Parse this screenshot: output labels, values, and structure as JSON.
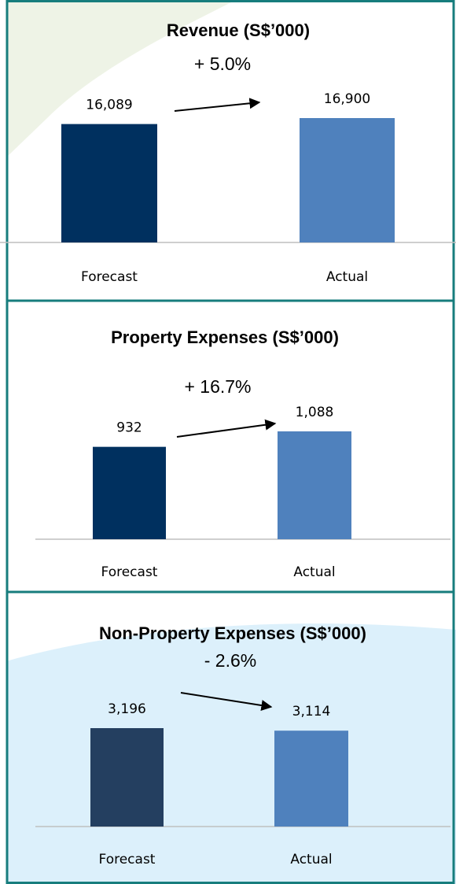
{
  "chart_data": [
    {
      "type": "bar",
      "title": "Revenue (S$’000)",
      "annotation": "+ 5.0%",
      "categories": [
        "Forecast",
        "Actual"
      ],
      "values": [
        16089,
        16900
      ],
      "value_labels": [
        "16,089",
        "16,900"
      ],
      "colors": [
        "#00305f",
        "#4f81bd"
      ]
    },
    {
      "type": "bar",
      "title": "Property Expenses (S$’000)",
      "annotation": "+ 16.7%",
      "categories": [
        "Forecast",
        "Actual"
      ],
      "values": [
        932,
        1088
      ],
      "value_labels": [
        "932",
        "1,088"
      ],
      "colors": [
        "#00305f",
        "#4f81bd"
      ]
    },
    {
      "type": "bar",
      "title": "Non-Property Expenses (S$’000)",
      "annotation": "- 2.6%",
      "categories": [
        "Forecast",
        "Actual"
      ],
      "values": [
        3196,
        3114
      ],
      "value_labels": [
        "3,196",
        "3,114"
      ],
      "colors": [
        "#243f60",
        "#4f81bd"
      ]
    }
  ]
}
